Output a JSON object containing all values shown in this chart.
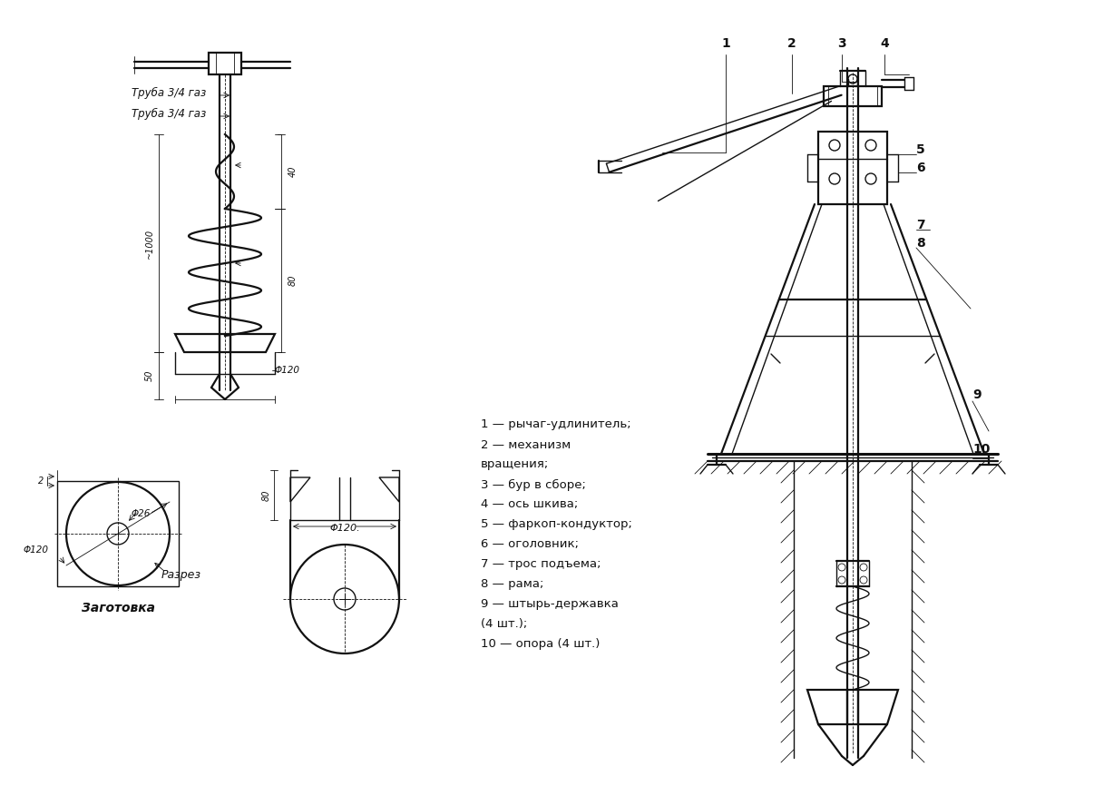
{
  "bg_color": "#ffffff",
  "line_color": "#111111",
  "text_color": "#111111",
  "legend_items": [
    "1 — рычаг-удлинитель;",
    "2 — механизм",
    "вращения;",
    "3 — бур в сборе;",
    "4 — ось шкива;",
    "5 — фаркоп-кондуктор;",
    "6 — оголовник;",
    "7 — трос подъема;",
    "8 — рама;",
    "9 — штырь-державка",
    "(4 шт.);",
    "10 — опора (4 шт.)"
  ],
  "label_truba1": "Труба 3/4 газ",
  "label_truba2": "Труба 3/4 газ",
  "label_zagotovka": "Заготовка",
  "label_razrez": "Разрез",
  "dim_1000": "~1000",
  "dim_50": "50",
  "dim_40": "40",
  "dim_80": "80",
  "dim_phi120": "Φ120",
  "dim_phi120dot": "Φ120.",
  "dim_phi26": "Φ26",
  "dim_2": "2"
}
